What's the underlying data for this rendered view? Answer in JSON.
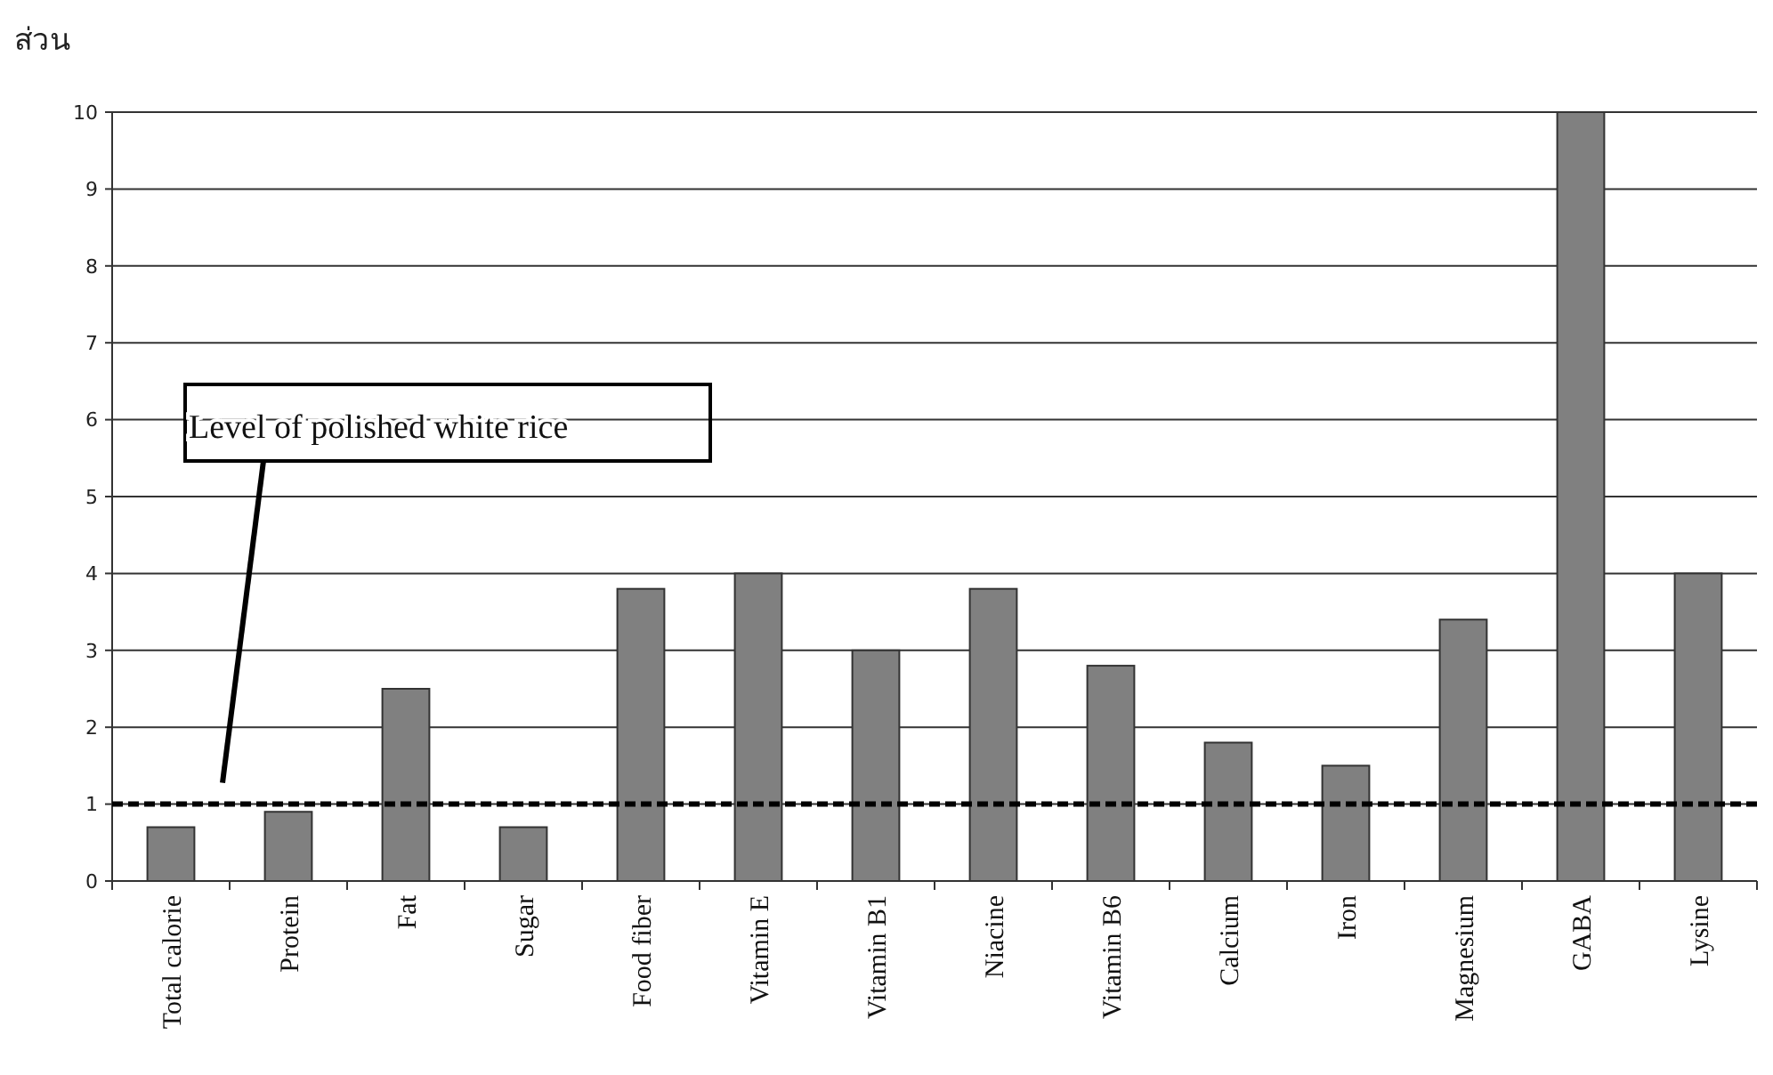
{
  "chart_data": {
    "type": "bar",
    "ylabel": "ส่วน",
    "categories": [
      "Total calorie",
      "Protein",
      "Fat",
      "Sugar",
      "Food fiber",
      "Vitamin E",
      "Vitamin B1",
      "Niacine",
      "Vitamin B6",
      "Calcium",
      "Iron",
      "Magnesium",
      "GABA",
      "Lysine"
    ],
    "values": [
      0.7,
      0.9,
      2.5,
      0.7,
      3.8,
      4.0,
      3.0,
      3.8,
      2.8,
      1.8,
      1.5,
      3.4,
      10,
      4.0
    ],
    "color": "#808080",
    "ylim": [
      0,
      10
    ],
    "yticks": [
      0,
      1,
      2,
      3,
      4,
      5,
      6,
      7,
      8,
      9,
      10
    ],
    "grid": "y",
    "ref_lines": [
      {
        "axis": "y",
        "value": 1,
        "label": "Level of polished white rice",
        "color": "#000000",
        "line_style": "dashed"
      }
    ]
  }
}
